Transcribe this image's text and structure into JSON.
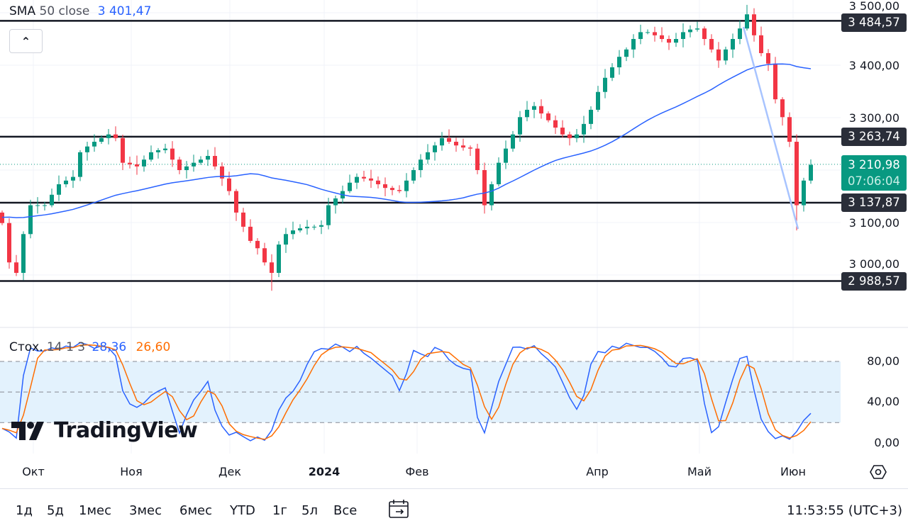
{
  "legend": {
    "name": "SMA",
    "params": "50 close",
    "value": "3 401,47"
  },
  "stoch_legend": {
    "name": "Стох.",
    "params": "14 1 3",
    "k_value": "28,36",
    "d_value": "26,60"
  },
  "price_axis": {
    "labels": [
      "3 500,00",
      "3 400,00",
      "3 300,00",
      "3 100,00",
      "3 000,00"
    ]
  },
  "stoch_axis": {
    "labels": [
      "80,00",
      "40,00",
      "0,00"
    ]
  },
  "levels": [
    {
      "label": "3 484,57",
      "price": 3484.57
    },
    {
      "label": "3 263,74",
      "price": 3263.74
    },
    {
      "label": "3 137,87",
      "price": 3137.87
    },
    {
      "label": "2 988,57",
      "price": 2988.57
    }
  ],
  "last_price": {
    "label": "3 210,98",
    "price": 3210.98,
    "countdown": "07:06:04"
  },
  "time_axis": [
    "Окт",
    "Ноя",
    "Дек",
    "2024",
    "Фев",
    "Апр",
    "Май",
    "Июн"
  ],
  "logo": "TradingView",
  "ranges": [
    "1д",
    "5д",
    "1мес",
    "3мес",
    "6мес",
    "YTD",
    "1г",
    "5л",
    "Все"
  ],
  "clock": "11:53:55 (UTC+3)",
  "icons": {
    "collapse": "chevron-up-icon",
    "calendar": "calendar-goto-icon",
    "settings": "chart-settings-icon"
  },
  "colors": {
    "up": "#089981",
    "down": "#f23645",
    "sma": "#2962ff",
    "stoch_k": "#2962ff",
    "stoch_d": "#ff6d00",
    "level": "#131722",
    "trendline": "#a8c4ff",
    "band": "#e3f2fd"
  },
  "chart_data": {
    "type": "candlestick",
    "series_close": [
      3099,
      3024,
      3004,
      3078,
      3133,
      3133,
      3133,
      3153,
      3173,
      3180,
      3187,
      3234,
      3245,
      3254,
      3261,
      3268,
      3261,
      3214,
      3211,
      3207,
      3220,
      3234,
      3238,
      3241,
      3220,
      3200,
      3207,
      3214,
      3220,
      3227,
      3207,
      3184,
      3160,
      3119,
      3092,
      3065,
      3051,
      3024,
      3004,
      3058,
      3078,
      3085,
      3089,
      3092,
      3092,
      3095,
      3133,
      3146,
      3160,
      3176,
      3187,
      3184,
      3180,
      3173,
      3166,
      3162,
      3160,
      3180,
      3200,
      3220,
      3234,
      3247,
      3261,
      3254,
      3247,
      3243,
      3241,
      3200,
      3133,
      3173,
      3214,
      3241,
      3268,
      3301,
      3315,
      3322,
      3308,
      3295,
      3281,
      3268,
      3261,
      3268,
      3288,
      3315,
      3349,
      3376,
      3396,
      3416,
      3430,
      3450,
      3463,
      3463,
      3457,
      3450,
      3443,
      3450,
      3463,
      3468,
      3470,
      3450,
      3430,
      3409,
      3430,
      3450,
      3470,
      3497,
      3457,
      3423,
      3403,
      3335,
      3301,
      3254,
      3133,
      3180,
      3210
    ],
    "indicators": [
      "SMA 50 close",
      "Stochastic 14 1 3"
    ],
    "stoch_levels": [
      80,
      50,
      20
    ],
    "stoch_range": [
      0,
      100
    ]
  }
}
